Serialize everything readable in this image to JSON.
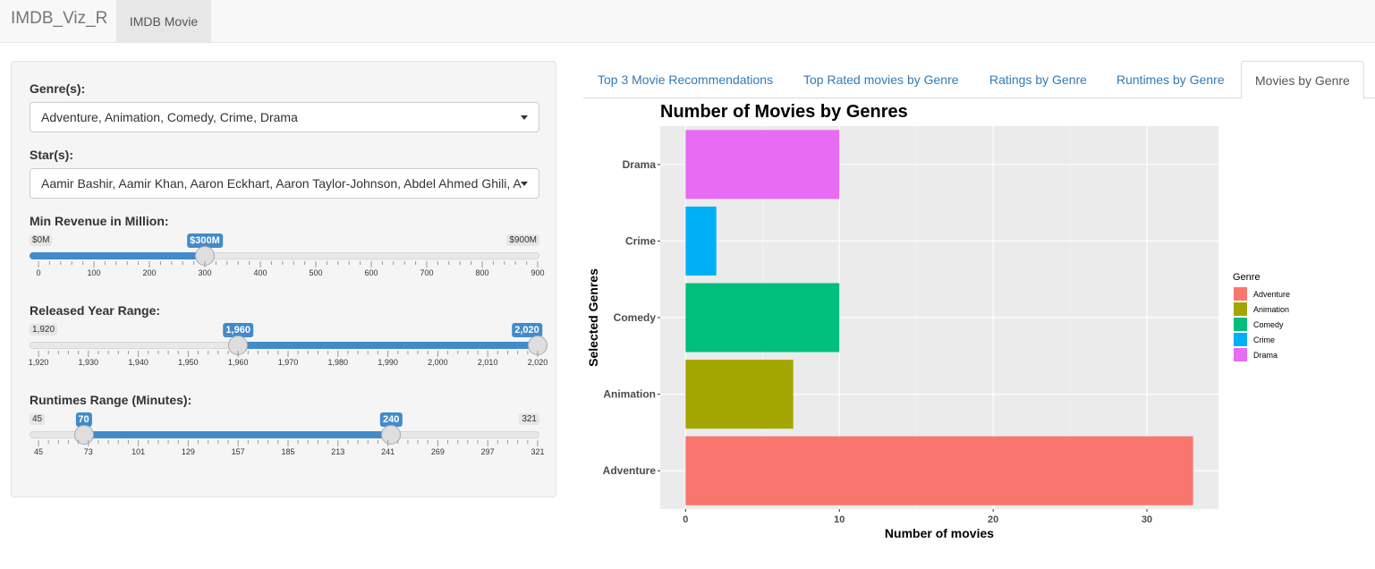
{
  "navbar": {
    "brand": "IMDB_Viz_R",
    "active_tab": "IMDB Movie"
  },
  "sidebar": {
    "genre": {
      "label": "Genre(s):",
      "value": "Adventure, Animation, Comedy, Crime, Drama"
    },
    "stars": {
      "label": "Star(s):",
      "value": "Aamir Bashir, Aamir Khan, Aaron Eckhart, Aaron Taylor-Johnson, Abdel Ahmed Ghili, A"
    },
    "revenue": {
      "label": "Min Revenue in Million:",
      "min_label": "$0M",
      "max_label": "$900M",
      "value_label": "$300M",
      "min": 0,
      "max": 900,
      "value": 300,
      "ticks": [
        "0",
        "100",
        "200",
        "300",
        "400",
        "500",
        "600",
        "700",
        "800",
        "900"
      ]
    },
    "year": {
      "label": "Released Year Range:",
      "min_label": "1,920",
      "from_label": "1,960",
      "to_label": "2,020",
      "min": 1920,
      "max": 2020,
      "from": 1960,
      "to": 2020,
      "ticks": [
        "1,920",
        "1,930",
        "1,940",
        "1,950",
        "1,960",
        "1,970",
        "1,980",
        "1,990",
        "2,000",
        "2,010",
        "2,020"
      ]
    },
    "runtime": {
      "label": "Runtimes Range (Minutes):",
      "min_label": "45",
      "max_label": "321",
      "from_label": "70",
      "to_label": "240",
      "min": 45,
      "max": 321,
      "from": 70,
      "to": 240,
      "ticks": [
        "45",
        "73",
        "101",
        "129",
        "157",
        "185",
        "213",
        "241",
        "269",
        "297",
        "321"
      ]
    }
  },
  "tabs": [
    "Top 3 Movie Recommendations",
    "Top Rated movies by Genre",
    "Ratings by Genre",
    "Runtimes by Genre",
    "Movies by Genre"
  ],
  "active_tab_index": 4,
  "colors": {
    "slider_blue": "#428bca",
    "panel_bg": "#ebebeb",
    "link": "#337ab7"
  },
  "chart_data": {
    "type": "bar",
    "orientation": "horizontal",
    "title": "Number of Movies by Genres",
    "xlabel": "Number of movies",
    "ylabel": "Selected Genres",
    "categories": [
      "Adventure",
      "Animation",
      "Comedy",
      "Crime",
      "Drama"
    ],
    "values": [
      33,
      7,
      10,
      2,
      10
    ],
    "colors": [
      "#F8766D",
      "#A3A500",
      "#00BF7D",
      "#00B0F6",
      "#E76BF3"
    ],
    "xticks": [
      0,
      10,
      20,
      30
    ],
    "xlim": [
      -1.65,
      34.65
    ],
    "legend": {
      "title": "Genre",
      "placement": "right"
    }
  }
}
